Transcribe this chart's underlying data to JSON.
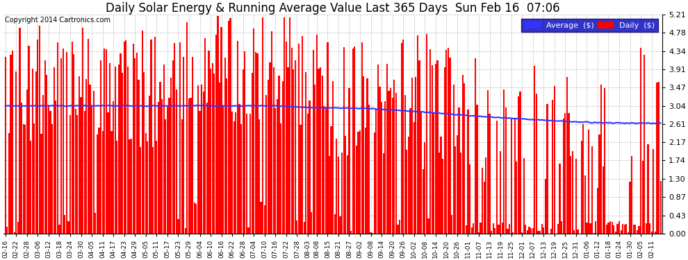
{
  "title": "Daily Solar Energy & Running Average Value Last 365 Days  Sun Feb 16  07:06",
  "copyright": "Copyright 2014 Cartronics.com",
  "ylabel_right_ticks": [
    0.0,
    0.43,
    0.87,
    1.3,
    1.74,
    2.17,
    2.61,
    3.04,
    3.47,
    3.91,
    4.34,
    4.78,
    5.21
  ],
  "ymax": 5.21,
  "ymin": 0.0,
  "bar_color": "#ff0000",
  "avg_line_color": "#3333ff",
  "background_color": "#ffffff",
  "grid_color": "#aaaaaa",
  "title_fontsize": 12,
  "legend_avg_label": "Average  ($)",
  "legend_daily_label": "Daily  ($)",
  "legend_bg_color": "#0000bb",
  "legend_text_color": "#ffffff",
  "x_tick_labels": [
    "02-16",
    "02-22",
    "02-28",
    "03-06",
    "03-12",
    "03-18",
    "03-24",
    "03-30",
    "04-05",
    "04-11",
    "04-17",
    "04-23",
    "04-29",
    "05-05",
    "05-11",
    "05-17",
    "05-23",
    "05-29",
    "06-04",
    "06-10",
    "06-16",
    "06-22",
    "06-28",
    "07-04",
    "07-10",
    "07-16",
    "07-22",
    "07-28",
    "08-03",
    "08-08",
    "08-15",
    "08-21",
    "08-27",
    "09-02",
    "09-08",
    "09-14",
    "09-20",
    "09-26",
    "10-02",
    "10-08",
    "10-14",
    "10-20",
    "10-26",
    "11-01",
    "11-07",
    "11-13",
    "11-19",
    "11-25",
    "12-01",
    "12-07",
    "12-13",
    "12-19",
    "12-25",
    "12-31",
    "01-06",
    "01-12",
    "01-18",
    "01-24",
    "01-30",
    "02-05",
    "02-11"
  ],
  "x_tick_positions": [
    0,
    6,
    12,
    18,
    24,
    30,
    36,
    42,
    48,
    54,
    60,
    66,
    72,
    78,
    84,
    90,
    96,
    102,
    108,
    114,
    120,
    126,
    132,
    138,
    144,
    150,
    156,
    162,
    168,
    173,
    179,
    185,
    191,
    197,
    203,
    209,
    215,
    221,
    227,
    233,
    239,
    245,
    251,
    257,
    263,
    269,
    275,
    281,
    287,
    293,
    299,
    305,
    311,
    317,
    323,
    329,
    335,
    341,
    347,
    353,
    359
  ],
  "avg_line_x": [
    0,
    50,
    100,
    150,
    168,
    200,
    230,
    260,
    290,
    320,
    340,
    364
  ],
  "avg_line_y": [
    3.04,
    3.04,
    3.04,
    3.04,
    3.0,
    2.98,
    2.9,
    2.8,
    2.72,
    2.65,
    2.63,
    2.62
  ]
}
